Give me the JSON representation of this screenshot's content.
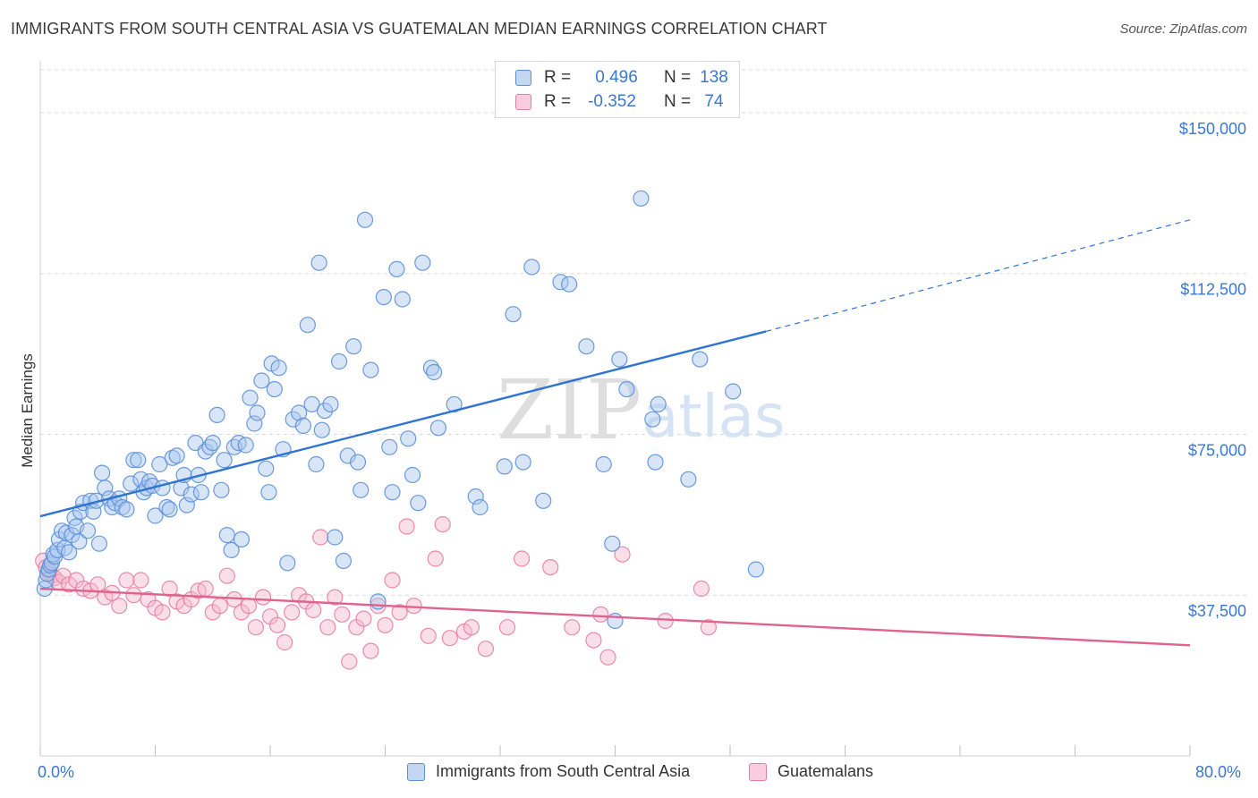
{
  "header": {
    "title": "IMMIGRANTS FROM SOUTH CENTRAL ASIA VS GUATEMALAN MEDIAN EARNINGS CORRELATION CHART",
    "source": "Source: ZipAtlas.com"
  },
  "watermark": {
    "part1": "ZIP",
    "part2": "atlas"
  },
  "legend": {
    "r_label": "R =",
    "n_label": "N =",
    "series": [
      {
        "r": "0.496",
        "n": "138"
      },
      {
        "r": "-0.352",
        "n": "74"
      }
    ]
  },
  "colors": {
    "blue_fill": "#a9c6ee",
    "blue_stroke": "#5b90d8",
    "blue_line": "#2f74d0",
    "pink_fill": "#f6b9cd",
    "pink_stroke": "#e57fa2",
    "pink_line": "#e0638f",
    "grid": "#d9d9d9",
    "tick_text": "#3b78d0"
  },
  "chart_data": {
    "type": "scatter",
    "title": "IMMIGRANTS FROM SOUTH CENTRAL ASIA VS GUATEMALAN MEDIAN EARNINGS CORRELATION CHART",
    "xlabel": "",
    "ylabel": "Median Earnings",
    "xlim": [
      0,
      80
    ],
    "ylim": [
      0,
      160000
    ],
    "x_tick_labels": [
      "0.0%",
      "80.0%"
    ],
    "y_ticks": [
      {
        "value": 37500,
        "label": "$37,500"
      },
      {
        "value": 75000,
        "label": "$75,000"
      },
      {
        "value": 112500,
        "label": "$112,500"
      },
      {
        "value": 150000,
        "label": "$150,000"
      }
    ],
    "grid": true,
    "legend_position": "bottom",
    "series": [
      {
        "name": "Immigrants from South Central Asia",
        "r": 0.496,
        "n": 138,
        "trend": {
          "x0": 0,
          "y0": 55900,
          "x1": 50.5,
          "y1": 99000,
          "dashed_to_x": 80,
          "dashed_to_y": 125000
        },
        "points": [
          [
            0.3,
            39000
          ],
          [
            0.4,
            41000
          ],
          [
            0.5,
            42500
          ],
          [
            0.6,
            43500
          ],
          [
            0.7,
            44500
          ],
          [
            0.8,
            45000
          ],
          [
            0.9,
            47000
          ],
          [
            1.0,
            46500
          ],
          [
            1.2,
            48000
          ],
          [
            1.3,
            50500
          ],
          [
            1.5,
            52500
          ],
          [
            1.7,
            48500
          ],
          [
            1.8,
            52000
          ],
          [
            2.0,
            47500
          ],
          [
            2.2,
            51500
          ],
          [
            2.4,
            55500
          ],
          [
            2.5,
            53500
          ],
          [
            2.7,
            50000
          ],
          [
            2.8,
            57000
          ],
          [
            3.0,
            59000
          ],
          [
            3.3,
            52500
          ],
          [
            3.5,
            59500
          ],
          [
            3.7,
            57000
          ],
          [
            3.9,
            59500
          ],
          [
            4.1,
            49500
          ],
          [
            4.3,
            66000
          ],
          [
            4.5,
            62500
          ],
          [
            4.8,
            60000
          ],
          [
            5.0,
            58000
          ],
          [
            5.2,
            59000
          ],
          [
            5.5,
            60000
          ],
          [
            5.7,
            58000
          ],
          [
            6.0,
            57500
          ],
          [
            6.3,
            63500
          ],
          [
            6.5,
            69000
          ],
          [
            6.8,
            69000
          ],
          [
            7.0,
            64500
          ],
          [
            7.2,
            61500
          ],
          [
            7.4,
            62500
          ],
          [
            7.6,
            64000
          ],
          [
            7.8,
            63000
          ],
          [
            8.0,
            56000
          ],
          [
            8.3,
            68000
          ],
          [
            8.5,
            62500
          ],
          [
            8.8,
            58000
          ],
          [
            9.0,
            57500
          ],
          [
            9.2,
            69500
          ],
          [
            9.5,
            70000
          ],
          [
            9.8,
            62500
          ],
          [
            10.0,
            65500
          ],
          [
            10.2,
            58500
          ],
          [
            10.5,
            61000
          ],
          [
            10.8,
            73000
          ],
          [
            11.0,
            65500
          ],
          [
            11.2,
            61500
          ],
          [
            11.5,
            71000
          ],
          [
            11.8,
            72000
          ],
          [
            12.0,
            73000
          ],
          [
            12.3,
            79500
          ],
          [
            12.6,
            62000
          ],
          [
            12.8,
            69000
          ],
          [
            13.0,
            51500
          ],
          [
            13.3,
            48000
          ],
          [
            13.5,
            72000
          ],
          [
            13.8,
            73000
          ],
          [
            14.0,
            50500
          ],
          [
            14.3,
            72500
          ],
          [
            14.6,
            83500
          ],
          [
            14.9,
            77500
          ],
          [
            15.1,
            80000
          ],
          [
            15.4,
            87500
          ],
          [
            15.7,
            67000
          ],
          [
            15.9,
            61500
          ],
          [
            16.1,
            91500
          ],
          [
            16.3,
            85500
          ],
          [
            16.6,
            90500
          ],
          [
            16.9,
            71500
          ],
          [
            17.2,
            45000
          ],
          [
            17.6,
            78500
          ],
          [
            18.0,
            80000
          ],
          [
            18.3,
            77000
          ],
          [
            18.6,
            100500
          ],
          [
            18.9,
            82000
          ],
          [
            19.2,
            68000
          ],
          [
            19.4,
            115000
          ],
          [
            19.6,
            76000
          ],
          [
            19.8,
            80500
          ],
          [
            20.2,
            82000
          ],
          [
            20.5,
            51000
          ],
          [
            20.8,
            92000
          ],
          [
            21.1,
            45500
          ],
          [
            21.4,
            70000
          ],
          [
            21.8,
            95500
          ],
          [
            22.1,
            68500
          ],
          [
            22.3,
            62000
          ],
          [
            22.6,
            125000
          ],
          [
            23.0,
            90000
          ],
          [
            23.5,
            36000
          ],
          [
            23.9,
            107000
          ],
          [
            24.3,
            72000
          ],
          [
            24.5,
            61500
          ],
          [
            24.8,
            113500
          ],
          [
            25.2,
            106500
          ],
          [
            25.6,
            74000
          ],
          [
            25.9,
            65500
          ],
          [
            26.3,
            59000
          ],
          [
            26.6,
            115000
          ],
          [
            27.2,
            90500
          ],
          [
            27.4,
            89500
          ],
          [
            27.7,
            76500
          ],
          [
            28.8,
            82000
          ],
          [
            30.3,
            60500
          ],
          [
            30.6,
            58000
          ],
          [
            32.3,
            67500
          ],
          [
            32.9,
            103000
          ],
          [
            33.6,
            68500
          ],
          [
            34.2,
            114000
          ],
          [
            35.0,
            59500
          ],
          [
            36.2,
            110500
          ],
          [
            36.8,
            110000
          ],
          [
            38.0,
            95500
          ],
          [
            39.2,
            68000
          ],
          [
            39.8,
            49500
          ],
          [
            40.0,
            31500
          ],
          [
            40.3,
            92500
          ],
          [
            40.8,
            85500
          ],
          [
            41.8,
            130000
          ],
          [
            42.6,
            78500
          ],
          [
            42.8,
            68500
          ],
          [
            43.0,
            82000
          ],
          [
            45.1,
            64500
          ],
          [
            45.9,
            92500
          ],
          [
            48.2,
            85000
          ],
          [
            49.8,
            43500
          ]
        ]
      },
      {
        "name": "Guatemalans",
        "r": -0.352,
        "n": 74,
        "trend": {
          "x0": 0,
          "y0": 39000,
          "x1": 80,
          "y1": 25800
        },
        "points": [
          [
            0.2,
            45500
          ],
          [
            0.4,
            44000
          ],
          [
            0.6,
            43000
          ],
          [
            0.8,
            42000
          ],
          [
            1.0,
            41500
          ],
          [
            1.3,
            40500
          ],
          [
            1.6,
            42000
          ],
          [
            2.0,
            40000
          ],
          [
            2.5,
            41000
          ],
          [
            3.0,
            39000
          ],
          [
            3.5,
            38500
          ],
          [
            4.0,
            40000
          ],
          [
            4.5,
            37000
          ],
          [
            5.0,
            38000
          ],
          [
            5.5,
            35000
          ],
          [
            6.0,
            41000
          ],
          [
            6.5,
            37500
          ],
          [
            7.0,
            41000
          ],
          [
            7.5,
            36500
          ],
          [
            8.0,
            34500
          ],
          [
            8.5,
            33500
          ],
          [
            9.0,
            39000
          ],
          [
            9.5,
            36000
          ],
          [
            10.0,
            35000
          ],
          [
            10.5,
            36500
          ],
          [
            11.0,
            38500
          ],
          [
            11.5,
            39000
          ],
          [
            12.0,
            33500
          ],
          [
            12.5,
            35000
          ],
          [
            13.0,
            42000
          ],
          [
            13.5,
            36500
          ],
          [
            14.0,
            33500
          ],
          [
            14.5,
            35000
          ],
          [
            15.0,
            30000
          ],
          [
            15.5,
            37000
          ],
          [
            16.0,
            32500
          ],
          [
            16.5,
            30500
          ],
          [
            17.0,
            26500
          ],
          [
            17.5,
            33500
          ],
          [
            18.0,
            37500
          ],
          [
            18.5,
            36000
          ],
          [
            19.0,
            34000
          ],
          [
            19.5,
            51000
          ],
          [
            20.0,
            30000
          ],
          [
            20.5,
            37000
          ],
          [
            21.0,
            33000
          ],
          [
            21.5,
            22000
          ],
          [
            22.0,
            30000
          ],
          [
            22.5,
            32000
          ],
          [
            23.0,
            24500
          ],
          [
            23.5,
            35000
          ],
          [
            24.0,
            30500
          ],
          [
            24.5,
            41000
          ],
          [
            25.0,
            33500
          ],
          [
            25.5,
            53500
          ],
          [
            26.0,
            35000
          ],
          [
            27.0,
            28000
          ],
          [
            27.5,
            46000
          ],
          [
            28.0,
            54000
          ],
          [
            28.5,
            27500
          ],
          [
            29.5,
            29000
          ],
          [
            30.0,
            30000
          ],
          [
            31.0,
            25000
          ],
          [
            32.5,
            30000
          ],
          [
            33.5,
            46000
          ],
          [
            35.5,
            44000
          ],
          [
            37.0,
            30000
          ],
          [
            38.5,
            27000
          ],
          [
            39.0,
            33000
          ],
          [
            39.5,
            23000
          ],
          [
            40.5,
            47000
          ],
          [
            43.5,
            31500
          ],
          [
            46.0,
            39000
          ],
          [
            46.5,
            30000
          ]
        ]
      }
    ]
  },
  "bottom_legend": {
    "items": [
      "Immigrants from South Central Asia",
      "Guatemalans"
    ]
  },
  "x_axis": {
    "left_label": "0.0%",
    "right_label": "80.0%"
  }
}
